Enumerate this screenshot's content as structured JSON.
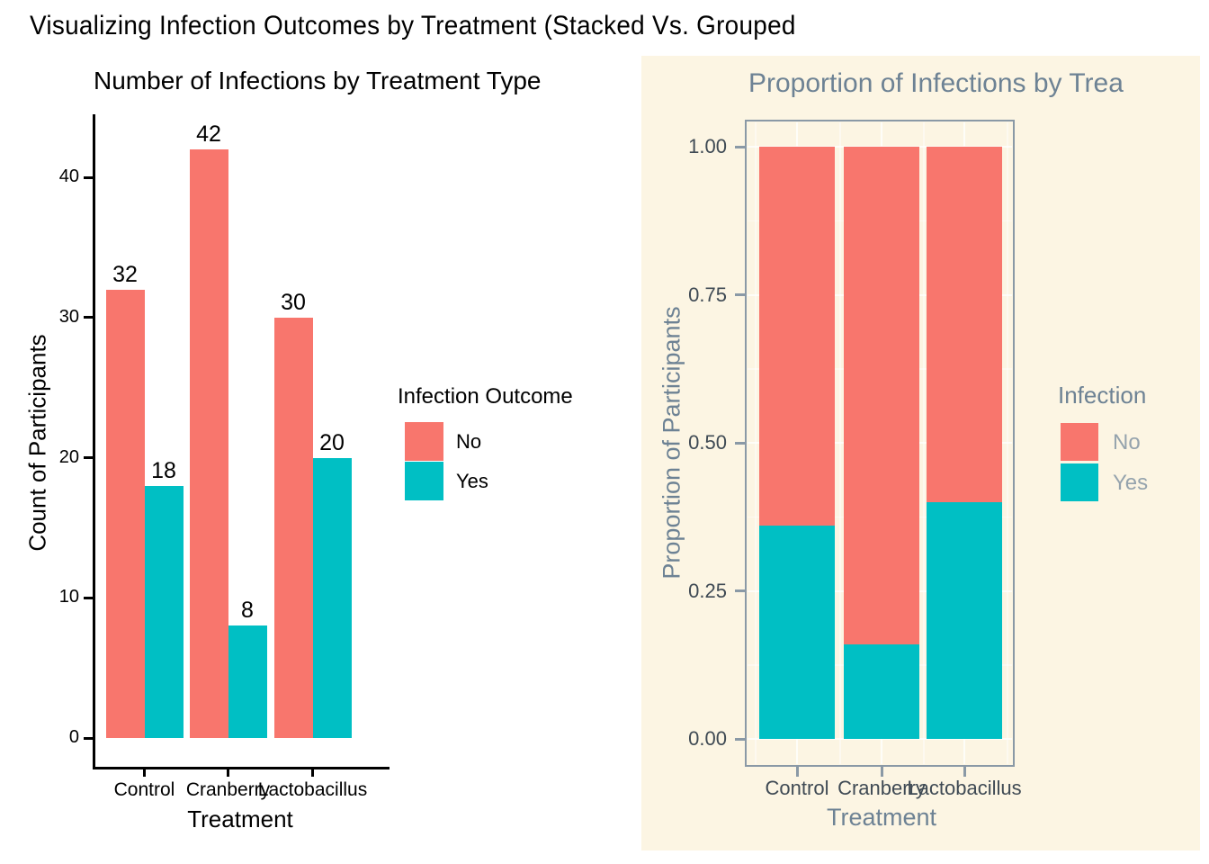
{
  "page_title": "Visualizing Infection Outcomes by Treatment (Stacked Vs. Grouped",
  "colors": {
    "no": "#F8766D",
    "yes": "#00BFC4",
    "right_panel_bg": "#FCF5E3",
    "right_panel_border": "#8A99A6",
    "right_title_text": "#6D8294",
    "right_axis_text": "#3F4A54",
    "right_legend_item_text": "#95A3AD",
    "left_text": "#000000"
  },
  "series_colors": {
    "No": "#F8766D",
    "Yes": "#00BFC4"
  },
  "chart_data": [
    {
      "type": "bar",
      "variant": "grouped",
      "title": "Number of Infections by Treatment Type",
      "xlabel": "Treatment",
      "ylabel": "Count of Participants",
      "categories": [
        "Control",
        "Cranberry",
        "Lactobacillus"
      ],
      "series": [
        {
          "name": "No",
          "values": [
            32,
            42,
            30
          ]
        },
        {
          "name": "Yes",
          "values": [
            18,
            8,
            20
          ]
        }
      ],
      "bar_value_labels": [
        [
          32,
          42,
          30
        ],
        [
          18,
          8,
          20
        ]
      ],
      "y_ticks": [
        0,
        10,
        20,
        30,
        40
      ],
      "ylim": [
        0,
        45
      ],
      "grid": false,
      "legend_title": "Infection Outcome",
      "legend_items": [
        "No",
        "Yes"
      ],
      "legend_position": "right"
    },
    {
      "type": "bar",
      "variant": "stacked",
      "title": "Proportion of Infections by Trea",
      "xlabel": "Treatment",
      "ylabel": "Proportion of Participants",
      "categories": [
        "Control",
        "Cranberry",
        "Lactobacillus"
      ],
      "series": [
        {
          "name": "Yes",
          "values": [
            0.36,
            0.16,
            0.4
          ]
        },
        {
          "name": "No",
          "values": [
            0.64,
            0.84,
            0.6
          ]
        }
      ],
      "y_tick_labels": [
        "0.00",
        "0.25",
        "0.50",
        "0.75",
        "1.00"
      ],
      "y_tick_values": [
        0,
        0.25,
        0.5,
        0.75,
        1.0
      ],
      "ylim": [
        0,
        1
      ],
      "grid": true,
      "legend_title": "Infection",
      "legend_items": [
        "No",
        "Yes"
      ],
      "legend_position": "right"
    }
  ]
}
